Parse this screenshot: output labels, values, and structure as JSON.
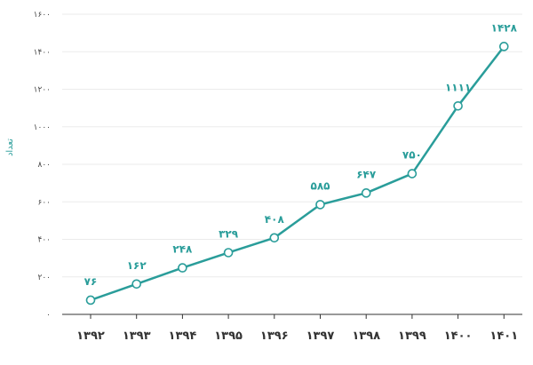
{
  "chart_data": {
    "type": "line",
    "title": "",
    "xlabel": "",
    "ylabel": "تعداد",
    "categories": [
      "۱۳۹۲",
      "۱۳۹۳",
      "۱۳۹۴",
      "۱۳۹۵",
      "۱۳۹۶",
      "۱۳۹۷",
      "۱۳۹۸",
      "۱۳۹۹",
      "۱۴۰۰",
      "۱۴۰۱"
    ],
    "values": [
      76,
      162,
      248,
      329,
      408,
      585,
      647,
      750,
      1111,
      1428
    ],
    "data_labels": [
      "۷۶",
      "۱۶۲",
      "۲۴۸",
      "۳۲۹",
      "۴۰۸",
      "۵۸۵",
      "۶۴۷",
      "۷۵۰",
      "۱۱۱۱",
      "۱۴۲۸"
    ],
    "ylim": [
      0,
      1600
    ],
    "yticks": [
      0,
      200,
      400,
      600,
      800,
      1000,
      1200,
      1400,
      1600
    ],
    "ytick_labels": [
      "۰",
      "۲۰۰",
      "۴۰۰",
      "۶۰۰",
      "۸۰۰",
      "۱۰۰۰",
      "۱۲۰۰",
      "۱۴۰۰",
      "۱۶۰۰"
    ],
    "grid": true,
    "color": "#2a9d9a"
  }
}
